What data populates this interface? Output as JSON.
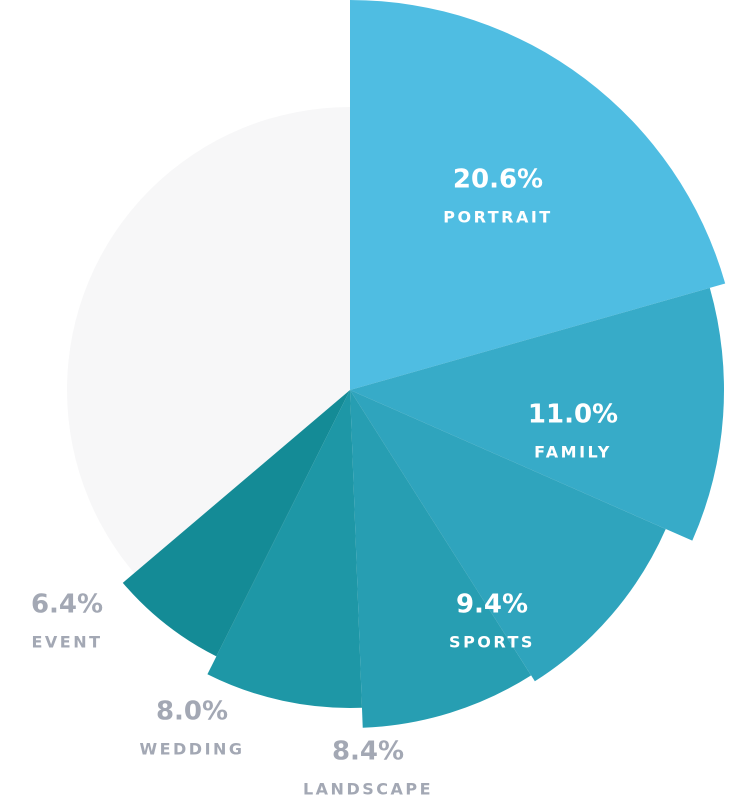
{
  "chart_data": {
    "type": "pie",
    "categories": [
      "PORTRAIT",
      "FAMILY",
      "SPORTS",
      "LANDSCAPE",
      "WEDDING",
      "EVENT"
    ],
    "values": [
      20.6,
      11.0,
      9.4,
      8.4,
      8.0,
      6.4
    ],
    "value_labels": [
      "20.6%",
      "11.0%",
      "9.4%",
      "8.4%",
      "8.0%",
      "6.4%"
    ],
    "colors": [
      "#4fbde2",
      "#37abc8",
      "#2fa4bd",
      "#279eb2",
      "#1e97a6",
      "#148b96"
    ]
  }
}
